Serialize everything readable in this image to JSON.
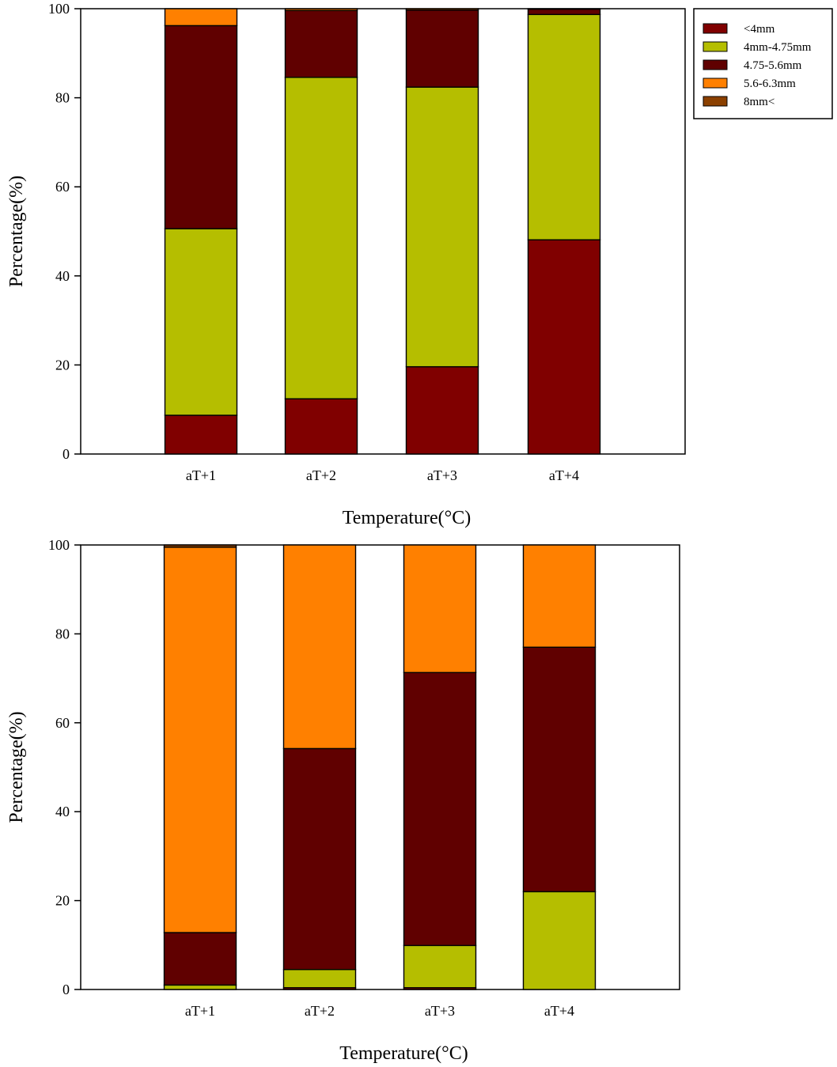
{
  "legend": {
    "placement": "top-right",
    "entries": [
      {
        "label": "<4mm",
        "color": "#800000"
      },
      {
        "label": "4mm-4.75mm",
        "color": "#b5be00"
      },
      {
        "label": "4.75-5.6mm",
        "color": "#600000"
      },
      {
        "label": "5.6-6.3mm",
        "color": "#ff8000"
      },
      {
        "label": "8mm<",
        "color": "#8b4000"
      }
    ]
  },
  "chart_data": [
    {
      "type": "bar",
      "stacked": true,
      "categories": [
        "aT+1",
        "aT+2",
        "aT+3",
        "aT+4"
      ],
      "xlabel": "Temperature(°C)",
      "ylabel": "Percentage(%)",
      "ylim": [
        0,
        100
      ],
      "yticks": [
        0,
        20,
        40,
        60,
        80,
        100
      ],
      "grid": false,
      "series": [
        {
          "name": "<4mm",
          "color": "#800000",
          "values": [
            8.7,
            12.4,
            19.6,
            48.1
          ]
        },
        {
          "name": "4mm-4.75mm",
          "color": "#b5be00",
          "values": [
            41.9,
            72.2,
            62.8,
            50.6
          ]
        },
        {
          "name": "4.75-5.6mm",
          "color": "#600000",
          "values": [
            45.6,
            15.0,
            17.3,
            1.2
          ]
        },
        {
          "name": "5.6-6.3mm",
          "color": "#ff8000",
          "values": [
            3.8,
            0.4,
            0.3,
            0.1
          ]
        },
        {
          "name": "8mm<",
          "color": "#8b4000",
          "values": [
            0,
            0,
            0,
            0
          ]
        }
      ]
    },
    {
      "type": "bar",
      "stacked": true,
      "categories": [
        "aT+1",
        "aT+2",
        "aT+3",
        "aT+4"
      ],
      "xlabel": "Temperature(°C)",
      "ylabel": "Percentage(%)",
      "ylim": [
        0,
        100
      ],
      "yticks": [
        0,
        20,
        40,
        60,
        80,
        100
      ],
      "grid": false,
      "series": [
        {
          "name": "<4mm",
          "color": "#800000",
          "values": [
            0,
            0.4,
            0.4,
            0
          ]
        },
        {
          "name": "4mm-4.75mm",
          "color": "#b5be00",
          "values": [
            1.0,
            4.1,
            9.5,
            22.0
          ]
        },
        {
          "name": "4.75-5.6mm",
          "color": "#600000",
          "values": [
            11.8,
            49.7,
            61.4,
            55.0
          ]
        },
        {
          "name": "5.6-6.3mm",
          "color": "#ff8000",
          "values": [
            86.7,
            45.8,
            28.7,
            23.0
          ]
        },
        {
          "name": "8mm<",
          "color": "#8b4000",
          "values": [
            0.5,
            0,
            0,
            0
          ]
        }
      ]
    }
  ]
}
